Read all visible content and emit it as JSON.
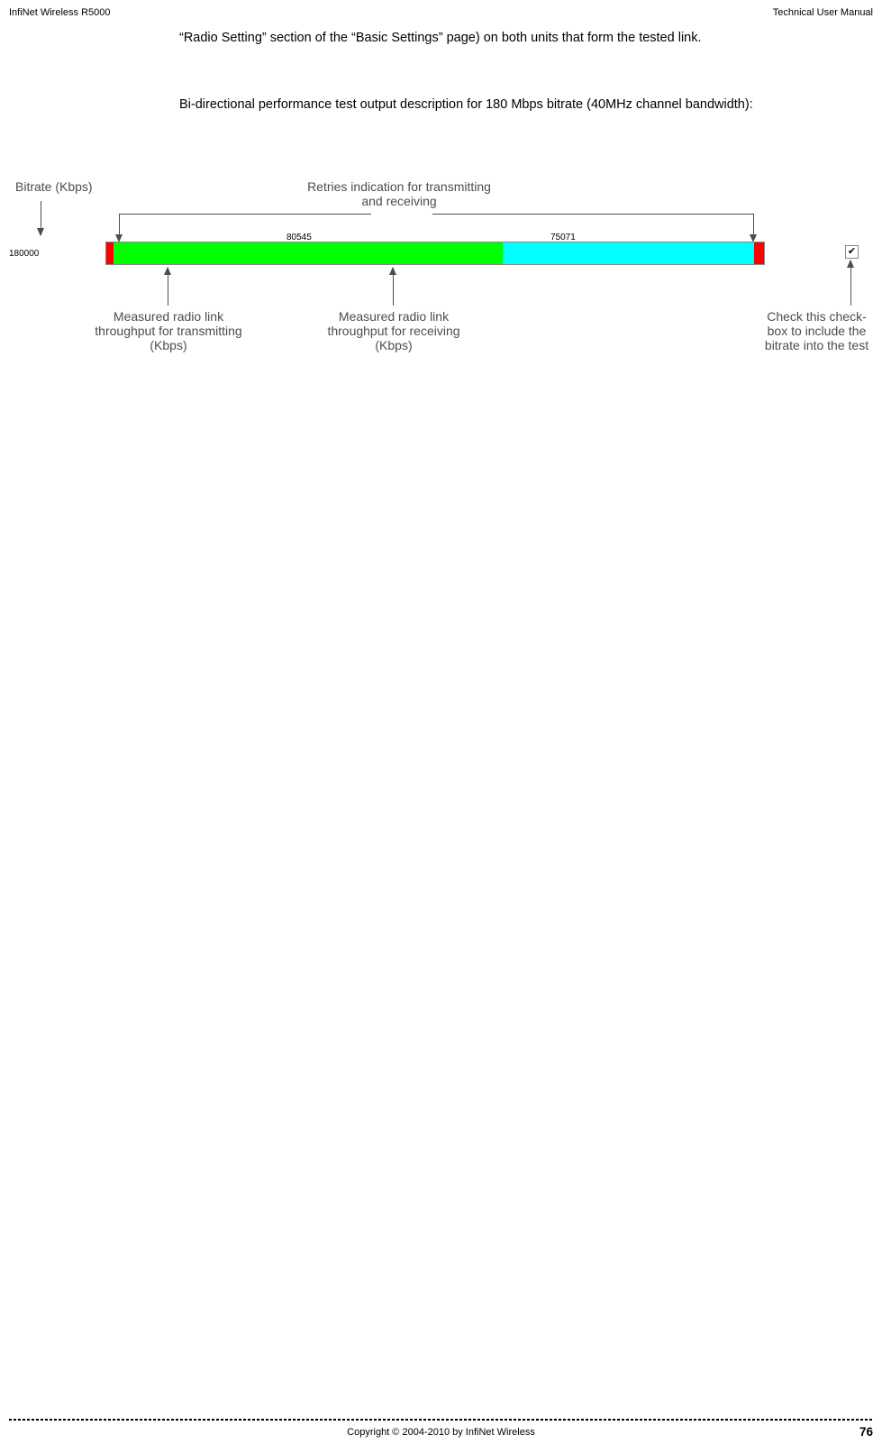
{
  "header": {
    "left": "InfiNet Wireless R5000",
    "right": "Technical User Manual"
  },
  "para1": "“Radio Setting” section of the “Basic Settings” page) on both units that form the tested link.",
  "para2": "Bi-directional performance test output description for 180 Mbps bitrate (40MHz channel bandwidth):",
  "diagram": {
    "bitrate_label": "Bitrate (Kbps)",
    "retries_label": "Retries indication for transmitting and receiving",
    "bitrate_value": "180000",
    "tx_value": "80545",
    "rx_value": "75071",
    "checkbox_char": "✔",
    "label_tx": "Measured radio link throughput for transmitting (Kbps)",
    "label_rx": "Measured radio link throughput for receiving (Kbps)",
    "label_cb": "Check this check-box to include the bitrate into the test",
    "colors": {
      "annotation_text": "#4d4d4d",
      "red": "#ff0000",
      "green": "#00ff00",
      "cyan": "#00ffff",
      "bar_border": "#888888"
    }
  },
  "footer": {
    "center": "Copyright © 2004-2010 by InfiNet Wireless",
    "page": "76"
  }
}
